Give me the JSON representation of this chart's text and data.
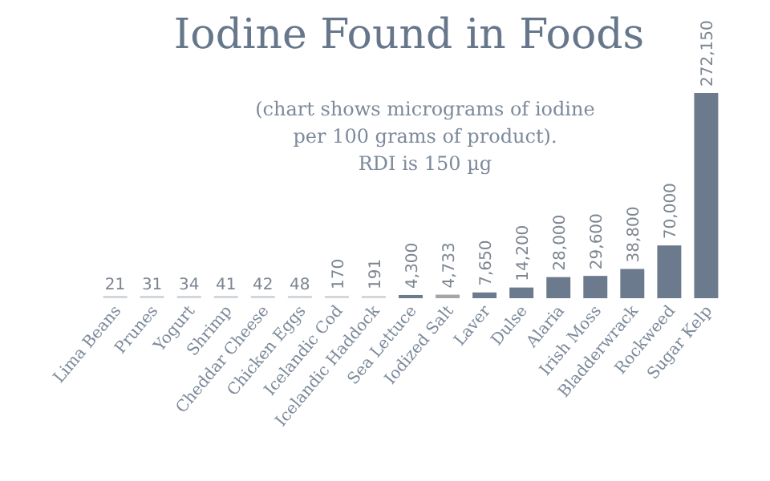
{
  "chart_data": {
    "type": "bar",
    "title": "Iodine Found in Foods",
    "annotations": [
      "(chart shows micrograms of iodine",
      "per 100 grams of product).",
      "RDI is 150 µg"
    ],
    "categories": [
      "Lima Beans",
      "Prunes",
      "Yogurt",
      "Shrimp",
      "Cheddar Cheese",
      "Chicken Eggs",
      "Icelandic Cod",
      "Icelandic Haddock",
      "Sea Lettuce",
      "Iodized Salt",
      "Laver",
      "Dulse",
      "Alaria",
      "Irish Moss",
      "Bladderwrack",
      "Rockweed",
      "Sugar Kelp"
    ],
    "values": [
      21,
      31,
      34,
      41,
      42,
      48,
      170,
      191,
      4300,
      4733,
      7650,
      14200,
      28000,
      29600,
      38800,
      70000,
      272150
    ],
    "colors": [
      "#d3d6da",
      "#d3d6da",
      "#d3d6da",
      "#d3d6da",
      "#d3d6da",
      "#d3d6da",
      "#d3d6da",
      "#d3d6da",
      "#6b7a8d",
      "#a3a6a9",
      "#6b7a8d",
      "#6b7a8d",
      "#6b7a8d",
      "#6b7a8d",
      "#6b7a8d",
      "#6b7a8d",
      "#6b7a8d"
    ],
    "value_labels": [
      "21",
      "31",
      "34",
      "41",
      "42",
      "48",
      "170",
      "191",
      "4,300",
      "4,733",
      "7,650",
      "14,200",
      "28,000",
      "29,600",
      "38,800",
      "70,000",
      "272,150"
    ]
  }
}
